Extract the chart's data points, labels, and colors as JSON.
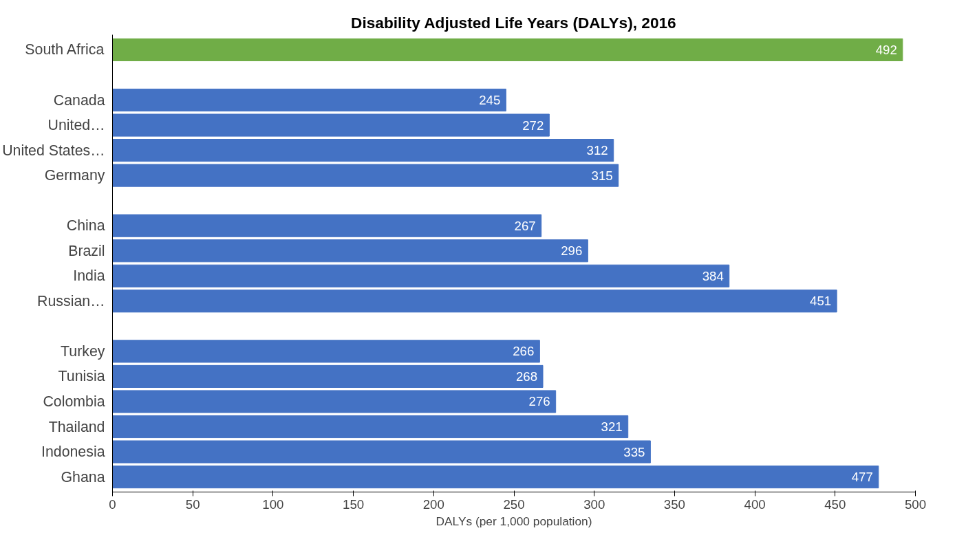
{
  "chart_data": {
    "type": "bar",
    "orientation": "horizontal",
    "title": "Disability Adjusted Life Years (DALYs), 2016",
    "xlabel": "DALYs (per 1,000 population)",
    "categories": [
      "South Africa",
      null,
      "Canada",
      "United…",
      "United States…",
      "Germany",
      null,
      "China",
      "Brazil",
      "India",
      "Russian…",
      null,
      "Turkey",
      "Tunisia",
      "Colombia",
      "Thailand",
      "Indonesia",
      "Ghana"
    ],
    "values": [
      492,
      null,
      245,
      272,
      312,
      315,
      null,
      267,
      296,
      384,
      451,
      null,
      266,
      268,
      276,
      321,
      335,
      477
    ],
    "colors": [
      "#70ad47",
      null,
      "#4472c4",
      "#4472c4",
      "#4472c4",
      "#4472c4",
      null,
      "#4472c4",
      "#4472c4",
      "#4472c4",
      "#4472c4",
      null,
      "#4472c4",
      "#4472c4",
      "#4472c4",
      "#4472c4",
      "#4472c4",
      "#4472c4"
    ],
    "xlim": [
      0,
      500
    ],
    "xticks": [
      0,
      50,
      100,
      150,
      200,
      250,
      300,
      350,
      400,
      450,
      500
    ],
    "data_labels": true,
    "grid": false
  }
}
